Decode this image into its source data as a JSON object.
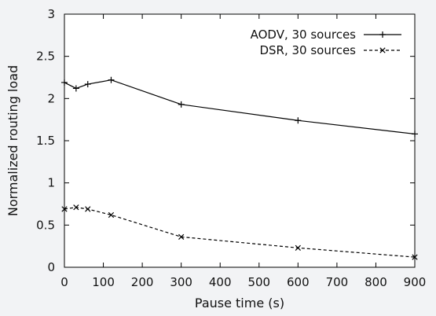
{
  "chart_data": {
    "type": "line",
    "xlabel": "Pause time (s)",
    "ylabel": "Normalized routing load",
    "xlim": [
      0,
      900
    ],
    "ylim": [
      0,
      3
    ],
    "xticks": [
      0,
      100,
      200,
      300,
      400,
      500,
      600,
      700,
      800,
      900
    ],
    "yticks": [
      0,
      0.5,
      1,
      1.5,
      2,
      2.5,
      3
    ],
    "ytick_labels": [
      "0",
      "0.5",
      "1",
      "1.5",
      "2",
      "2.5",
      "3"
    ],
    "grid": false,
    "legend_position": "top-right",
    "series": [
      {
        "name": "AODV, 30 sources",
        "line_style": "solid",
        "marker": "plus",
        "color": "#000000",
        "x": [
          0,
          30,
          60,
          120,
          300,
          600,
          900
        ],
        "y": [
          2.19,
          2.12,
          2.17,
          2.22,
          1.93,
          1.74,
          1.58
        ]
      },
      {
        "name": "DSR, 30 sources",
        "line_style": "dashed",
        "marker": "cross",
        "color": "#000000",
        "x": [
          0,
          30,
          60,
          120,
          300,
          600,
          900
        ],
        "y": [
          0.69,
          0.71,
          0.69,
          0.62,
          0.36,
          0.23,
          0.12
        ]
      }
    ]
  }
}
